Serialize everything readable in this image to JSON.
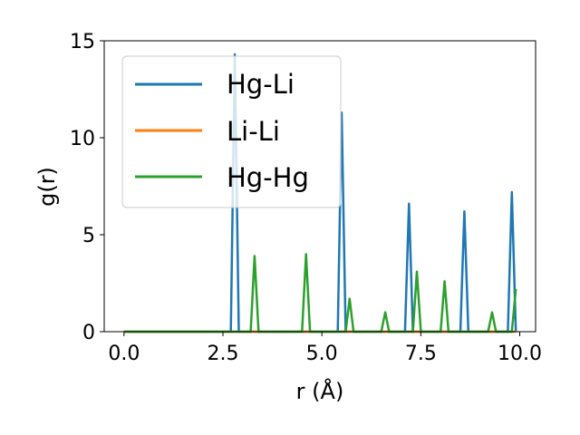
{
  "chart_data": {
    "type": "line",
    "xlabel": "r (Å)",
    "ylabel": "g(r)",
    "xlim": [
      -0.5,
      10.4
    ],
    "ylim": [
      0,
      15
    ],
    "xticks": [
      0.0,
      2.5,
      5.0,
      7.5,
      10.0
    ],
    "xtick_labels": [
      "0.0",
      "2.5",
      "5.0",
      "7.5",
      "10.0"
    ],
    "yticks": [
      0,
      5,
      10,
      15
    ],
    "ytick_labels": [
      "0",
      "5",
      "10",
      "15"
    ],
    "grid": false,
    "legend_position": "top-left",
    "series": [
      {
        "name": "Hg-Li",
        "color": "#1f77b4",
        "x": [
          0.0,
          2.7,
          2.8,
          2.9,
          5.4,
          5.5,
          5.6,
          7.1,
          7.2,
          7.3,
          8.5,
          8.6,
          8.7,
          9.7,
          9.8,
          9.9
        ],
        "y": [
          0,
          0,
          14.3,
          0,
          0,
          11.3,
          0,
          0,
          6.6,
          0,
          0,
          6.2,
          0,
          0,
          7.2,
          0
        ]
      },
      {
        "name": "Li-Li",
        "color": "#ff7f0e",
        "x": [
          0.0,
          9.9
        ],
        "y": [
          0,
          0
        ]
      },
      {
        "name": "Hg-Hg",
        "color": "#2ca02c",
        "x": [
          0.0,
          3.2,
          3.3,
          3.4,
          4.5,
          4.6,
          4.7,
          5.6,
          5.7,
          5.8,
          6.5,
          6.6,
          6.7,
          7.3,
          7.4,
          7.5,
          8.0,
          8.1,
          8.2,
          9.2,
          9.3,
          9.4,
          9.8,
          9.9
        ],
        "y": [
          0,
          0,
          3.9,
          0,
          0,
          4.0,
          0,
          0,
          1.7,
          0,
          0,
          1.0,
          0,
          0,
          3.1,
          0,
          0,
          2.6,
          0,
          0,
          1.0,
          0,
          0,
          2.2
        ]
      }
    ]
  }
}
